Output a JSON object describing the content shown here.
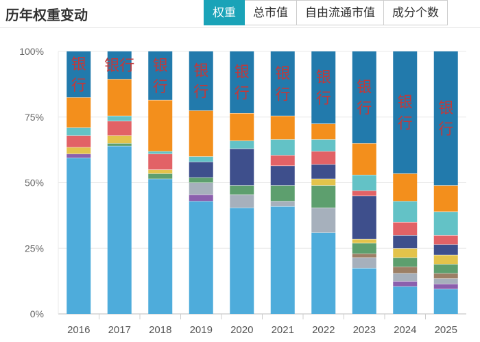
{
  "header": {
    "title": "历年权重变动",
    "tabs": [
      {
        "label": "权重",
        "active": true
      },
      {
        "label": "总市值",
        "active": false
      },
      {
        "label": "自由流通市值",
        "active": false
      },
      {
        "label": "成分个数",
        "active": false
      }
    ],
    "accent_color": "#1aa3b8"
  },
  "chart_data": {
    "type": "bar",
    "stacked": true,
    "categories": [
      "2016",
      "2017",
      "2018",
      "2019",
      "2020",
      "2021",
      "2022",
      "2023",
      "2024",
      "2025"
    ],
    "y_tick_labels": [
      "0%",
      "25%",
      "50%",
      "75%",
      "100%"
    ],
    "ylim": [
      0,
      100
    ],
    "top_segment_label": "银行",
    "top_segment_label_color": "#c0393b",
    "series_colors": [
      "#4eacdb",
      "#8b5fad",
      "#e3c34b",
      "#a6b0bc",
      "#5d9f6e",
      "#9c7f65",
      "#3e4f8c",
      "#e26266",
      "#63c2c6",
      "#f38f1c",
      "#227aac"
    ],
    "bars": [
      {
        "year": "2016",
        "segments": [
          {
            "c": 0,
            "v": 59.5
          },
          {
            "c": 1,
            "v": 1.5
          },
          {
            "c": 2,
            "v": 2.5
          },
          {
            "c": 7,
            "v": 4.5
          },
          {
            "c": 8,
            "v": 3
          },
          {
            "c": 9,
            "v": 11.5
          },
          {
            "c": 10,
            "v": 17.5
          }
        ]
      },
      {
        "year": "2017",
        "segments": [
          {
            "c": 0,
            "v": 64
          },
          {
            "c": 4,
            "v": 1
          },
          {
            "c": 2,
            "v": 3
          },
          {
            "c": 7,
            "v": 5.5
          },
          {
            "c": 8,
            "v": 2
          },
          {
            "c": 9,
            "v": 14
          },
          {
            "c": 10,
            "v": 10.5
          }
        ]
      },
      {
        "year": "2018",
        "segments": [
          {
            "c": 0,
            "v": 51.5
          },
          {
            "c": 4,
            "v": 2
          },
          {
            "c": 2,
            "v": 1.5
          },
          {
            "c": 7,
            "v": 6
          },
          {
            "c": 8,
            "v": 1
          },
          {
            "c": 9,
            "v": 19.5
          },
          {
            "c": 10,
            "v": 18.5
          }
        ]
      },
      {
        "year": "2019",
        "segments": [
          {
            "c": 0,
            "v": 43
          },
          {
            "c": 1,
            "v": 2.5
          },
          {
            "c": 3,
            "v": 4.5
          },
          {
            "c": 4,
            "v": 2
          },
          {
            "c": 6,
            "v": 6
          },
          {
            "c": 8,
            "v": 2
          },
          {
            "c": 9,
            "v": 17.5
          },
          {
            "c": 10,
            "v": 22.5
          }
        ]
      },
      {
        "year": "2020",
        "segments": [
          {
            "c": 0,
            "v": 40.5
          },
          {
            "c": 3,
            "v": 5
          },
          {
            "c": 4,
            "v": 3.5
          },
          {
            "c": 6,
            "v": 14
          },
          {
            "c": 8,
            "v": 3
          },
          {
            "c": 9,
            "v": 10.5
          },
          {
            "c": 10,
            "v": 23.5
          }
        ]
      },
      {
        "year": "2021",
        "segments": [
          {
            "c": 0,
            "v": 41
          },
          {
            "c": 3,
            "v": 2
          },
          {
            "c": 4,
            "v": 6
          },
          {
            "c": 6,
            "v": 7.5
          },
          {
            "c": 7,
            "v": 4
          },
          {
            "c": 8,
            "v": 6
          },
          {
            "c": 9,
            "v": 9
          },
          {
            "c": 10,
            "v": 24.5
          }
        ]
      },
      {
        "year": "2022",
        "segments": [
          {
            "c": 0,
            "v": 31
          },
          {
            "c": 3,
            "v": 9.5
          },
          {
            "c": 4,
            "v": 8.5
          },
          {
            "c": 2,
            "v": 2.5
          },
          {
            "c": 6,
            "v": 5.5
          },
          {
            "c": 7,
            "v": 5
          },
          {
            "c": 8,
            "v": 4.5
          },
          {
            "c": 9,
            "v": 6
          },
          {
            "c": 10,
            "v": 27.5
          }
        ]
      },
      {
        "year": "2023",
        "segments": [
          {
            "c": 0,
            "v": 17.5
          },
          {
            "c": 3,
            "v": 4
          },
          {
            "c": 5,
            "v": 1.5
          },
          {
            "c": 4,
            "v": 4
          },
          {
            "c": 2,
            "v": 1.5
          },
          {
            "c": 6,
            "v": 16.5
          },
          {
            "c": 7,
            "v": 2
          },
          {
            "c": 8,
            "v": 6
          },
          {
            "c": 9,
            "v": 12
          },
          {
            "c": 10,
            "v": 35
          }
        ]
      },
      {
        "year": "2024",
        "segments": [
          {
            "c": 0,
            "v": 10.5
          },
          {
            "c": 1,
            "v": 2
          },
          {
            "c": 3,
            "v": 3
          },
          {
            "c": 5,
            "v": 2.5
          },
          {
            "c": 4,
            "v": 3.5
          },
          {
            "c": 2,
            "v": 3.5
          },
          {
            "c": 6,
            "v": 5
          },
          {
            "c": 7,
            "v": 5
          },
          {
            "c": 8,
            "v": 8
          },
          {
            "c": 9,
            "v": 10.5
          },
          {
            "c": 10,
            "v": 46.5
          }
        ]
      },
      {
        "year": "2025",
        "segments": [
          {
            "c": 0,
            "v": 9.5
          },
          {
            "c": 1,
            "v": 2
          },
          {
            "c": 3,
            "v": 2
          },
          {
            "c": 5,
            "v": 2
          },
          {
            "c": 4,
            "v": 3.5
          },
          {
            "c": 2,
            "v": 3.5
          },
          {
            "c": 6,
            "v": 4
          },
          {
            "c": 7,
            "v": 3.5
          },
          {
            "c": 8,
            "v": 9
          },
          {
            "c": 9,
            "v": 10
          },
          {
            "c": 10,
            "v": 51
          }
        ]
      }
    ]
  }
}
